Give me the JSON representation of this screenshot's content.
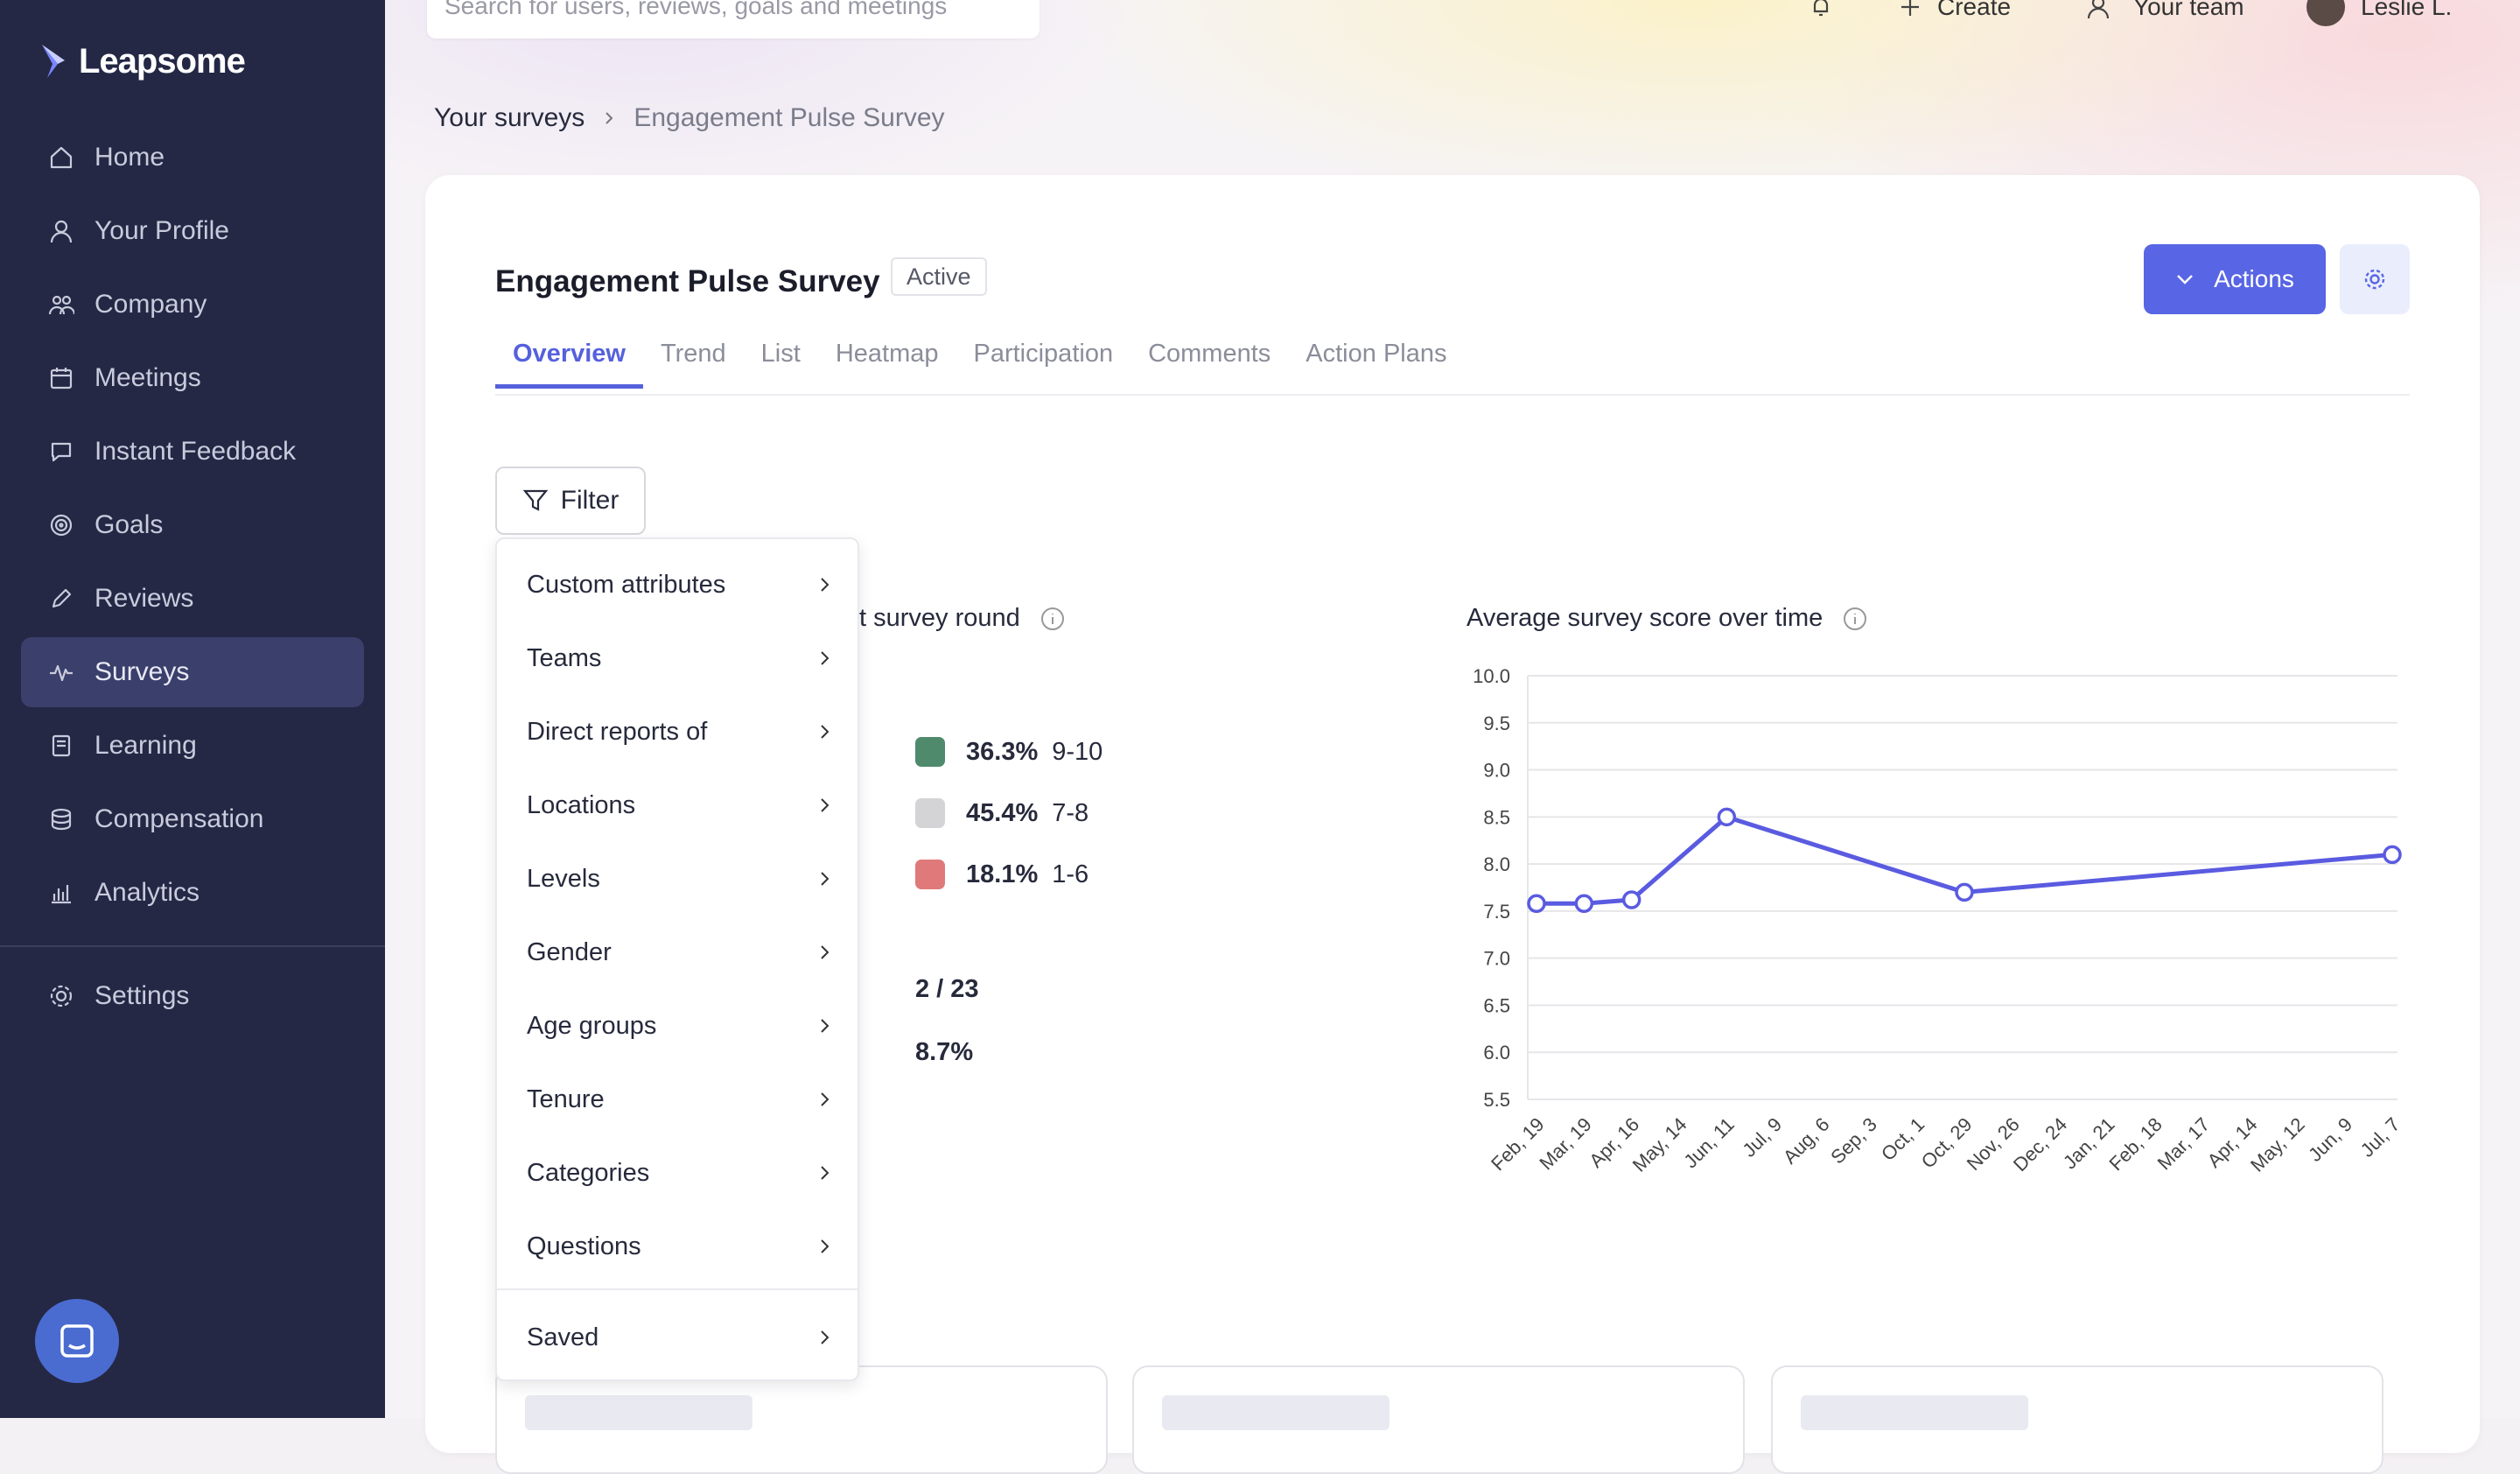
{
  "app": {
    "logo_text": "Leapsome"
  },
  "sidebar": {
    "items": [
      {
        "label": "Home",
        "icon": "home-icon"
      },
      {
        "label": "Your Profile",
        "icon": "user-icon"
      },
      {
        "label": "Company",
        "icon": "people-icon"
      },
      {
        "label": "Meetings",
        "icon": "calendar-icon"
      },
      {
        "label": "Instant Feedback",
        "icon": "chat-icon"
      },
      {
        "label": "Goals",
        "icon": "target-icon"
      },
      {
        "label": "Reviews",
        "icon": "pencil-icon"
      },
      {
        "label": "Surveys",
        "icon": "pulse-icon",
        "active": true
      },
      {
        "label": "Learning",
        "icon": "book-icon"
      },
      {
        "label": "Compensation",
        "icon": "coins-icon"
      },
      {
        "label": "Analytics",
        "icon": "bars-icon"
      }
    ],
    "settings_label": "Settings"
  },
  "topbar": {
    "search_placeholder": "Search for users, reviews, goals and meetings",
    "create_label": "Create",
    "team_label": "Your team",
    "user_label": "Leslie L."
  },
  "breadcrumb": {
    "parent": "Your surveys",
    "current": "Engagement Pulse Survey"
  },
  "page": {
    "title": "Engagement Pulse Survey",
    "status_badge": "Active",
    "actions_label": "Actions"
  },
  "tabs": [
    {
      "label": "Overview",
      "active": true
    },
    {
      "label": "Trend"
    },
    {
      "label": "List"
    },
    {
      "label": "Heatmap"
    },
    {
      "label": "Participation"
    },
    {
      "label": "Comments"
    },
    {
      "label": "Action Plans"
    }
  ],
  "filter": {
    "button_label": "Filter",
    "menu_items": [
      "Custom attributes",
      "Teams",
      "Direct reports of",
      "Locations",
      "Levels",
      "Gender",
      "Age groups",
      "Tenure",
      "Categories",
      "Questions"
    ],
    "saved_label": "Saved"
  },
  "left_section": {
    "title_partial": "t survey round",
    "legend": [
      {
        "pct": "36.3%",
        "range": "9-10",
        "color": "#4f8a6d"
      },
      {
        "pct": "45.4%",
        "range": "7-8",
        "color": "#d4d4d6"
      },
      {
        "pct": "18.1%",
        "range": "1-6",
        "color": "#e07a7a"
      }
    ],
    "participation_count": "2 / 23",
    "participation_rate": "8.7%"
  },
  "chart_data": {
    "type": "line",
    "title": "Average survey score over time",
    "x": [
      "Feb, 19",
      "Mar, 19",
      "Apr, 16",
      "May, 14",
      "Jun, 11",
      "Jul, 9",
      "Aug, 6",
      "Sep, 3",
      "Oct, 1",
      "Oct, 29",
      "Nov, 26",
      "Dec, 24",
      "Jan, 21",
      "Feb, 18",
      "Mar, 17",
      "Apr, 14",
      "May, 12",
      "Jun, 9",
      "Jul, 7"
    ],
    "series": [
      {
        "points": [
          {
            "x": "Feb, 19",
            "y": 7.58
          },
          {
            "x": "Mar, 19",
            "y": 7.58
          },
          {
            "x": "Apr, 16",
            "y": 7.62
          },
          {
            "x": "Jun, 11",
            "y": 8.5
          },
          {
            "x": "Oct, 29",
            "y": 7.7
          },
          {
            "x": "Jul, 7",
            "y": 8.1
          }
        ]
      }
    ],
    "ylim": [
      5.5,
      10.0
    ],
    "yticks": [
      "10.0",
      "9.5",
      "9.0",
      "8.5",
      "8.0",
      "7.5",
      "7.0",
      "6.5",
      "6.0",
      "5.5"
    ],
    "grid": true,
    "color": "#5a5be0"
  }
}
